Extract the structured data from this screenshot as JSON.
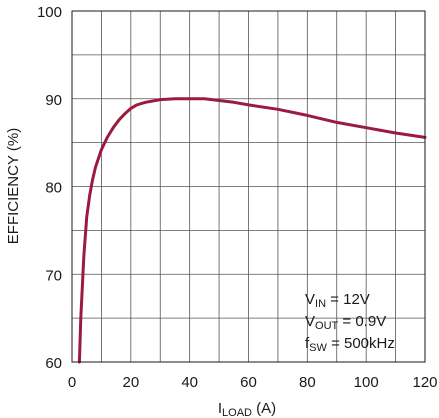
{
  "chart_data": {
    "type": "line",
    "title": "",
    "xlabel": {
      "main": "I",
      "sub": "LOAD",
      "unit": " (A)"
    },
    "ylabel": "EFFICIENCY (%)",
    "xlim": [
      0,
      120
    ],
    "ylim": [
      60,
      100
    ],
    "xticks": [
      0,
      20,
      40,
      60,
      80,
      100,
      120
    ],
    "yticks": [
      60,
      70,
      80,
      90,
      100
    ],
    "grid": true,
    "line_color": "#9b1b3f",
    "series": [
      {
        "x": [
          2.5,
          3,
          4,
          5,
          6,
          7,
          8,
          10,
          12,
          14,
          16,
          18,
          20,
          22,
          25,
          30,
          35,
          40,
          45,
          50,
          55,
          60,
          70,
          80,
          90,
          100,
          110,
          120
        ],
        "y": [
          60,
          65,
          72,
          76.5,
          79,
          80.8,
          82.2,
          84.2,
          85.6,
          86.7,
          87.6,
          88.3,
          88.9,
          89.3,
          89.6,
          89.9,
          90.0,
          90.0,
          90.0,
          89.8,
          89.6,
          89.3,
          88.8,
          88.1,
          87.3,
          86.7,
          86.1,
          85.6
        ]
      }
    ],
    "annotation": [
      {
        "main": "V",
        "sub": "IN",
        "rest": " = 12V"
      },
      {
        "main": "V",
        "sub": "OUT",
        "rest": " = 0.9V"
      },
      {
        "main": "f",
        "sub": "SW",
        "rest": " = 500kHz"
      }
    ]
  }
}
